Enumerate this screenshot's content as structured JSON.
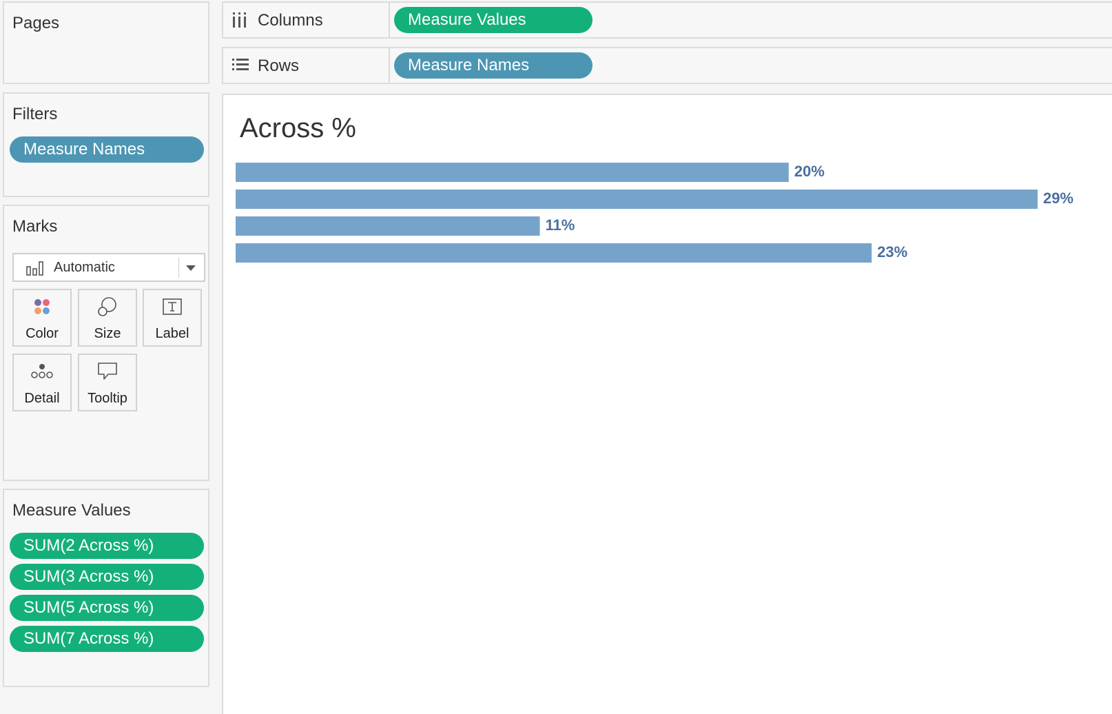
{
  "pages_card": {
    "title": "Pages"
  },
  "filters_card": {
    "title": "Filters",
    "pills": [
      "Measure Names"
    ]
  },
  "marks_card": {
    "title": "Marks",
    "mark_type": "Automatic",
    "buttons": {
      "color": "Color",
      "size": "Size",
      "label": "Label",
      "detail": "Detail",
      "tooltip": "Tooltip"
    }
  },
  "measure_values_card": {
    "title": "Measure Values",
    "pills": [
      "SUM(2 Across %)",
      "SUM(3 Across %)",
      "SUM(5 Across %)",
      "SUM(7 Across %)"
    ]
  },
  "shelves": {
    "columns": {
      "label": "Columns",
      "pill": "Measure Values"
    },
    "rows": {
      "label": "Rows",
      "pill": "Measure Names"
    }
  },
  "colors": {
    "accent_blue": "#4d96b3",
    "accent_green": "#14b07a",
    "bar": "#76a3c9",
    "data_label": "#4a6fa0"
  },
  "chart_data": {
    "type": "bar",
    "orientation": "horizontal",
    "title": "Across %",
    "categories": [
      "",
      "",
      "",
      ""
    ],
    "values": [
      20,
      29,
      11,
      23
    ],
    "data_labels": [
      "20%",
      "29%",
      "11%",
      "23%"
    ],
    "xlim": [
      0,
      29
    ],
    "grid": false,
    "legend": "none"
  }
}
